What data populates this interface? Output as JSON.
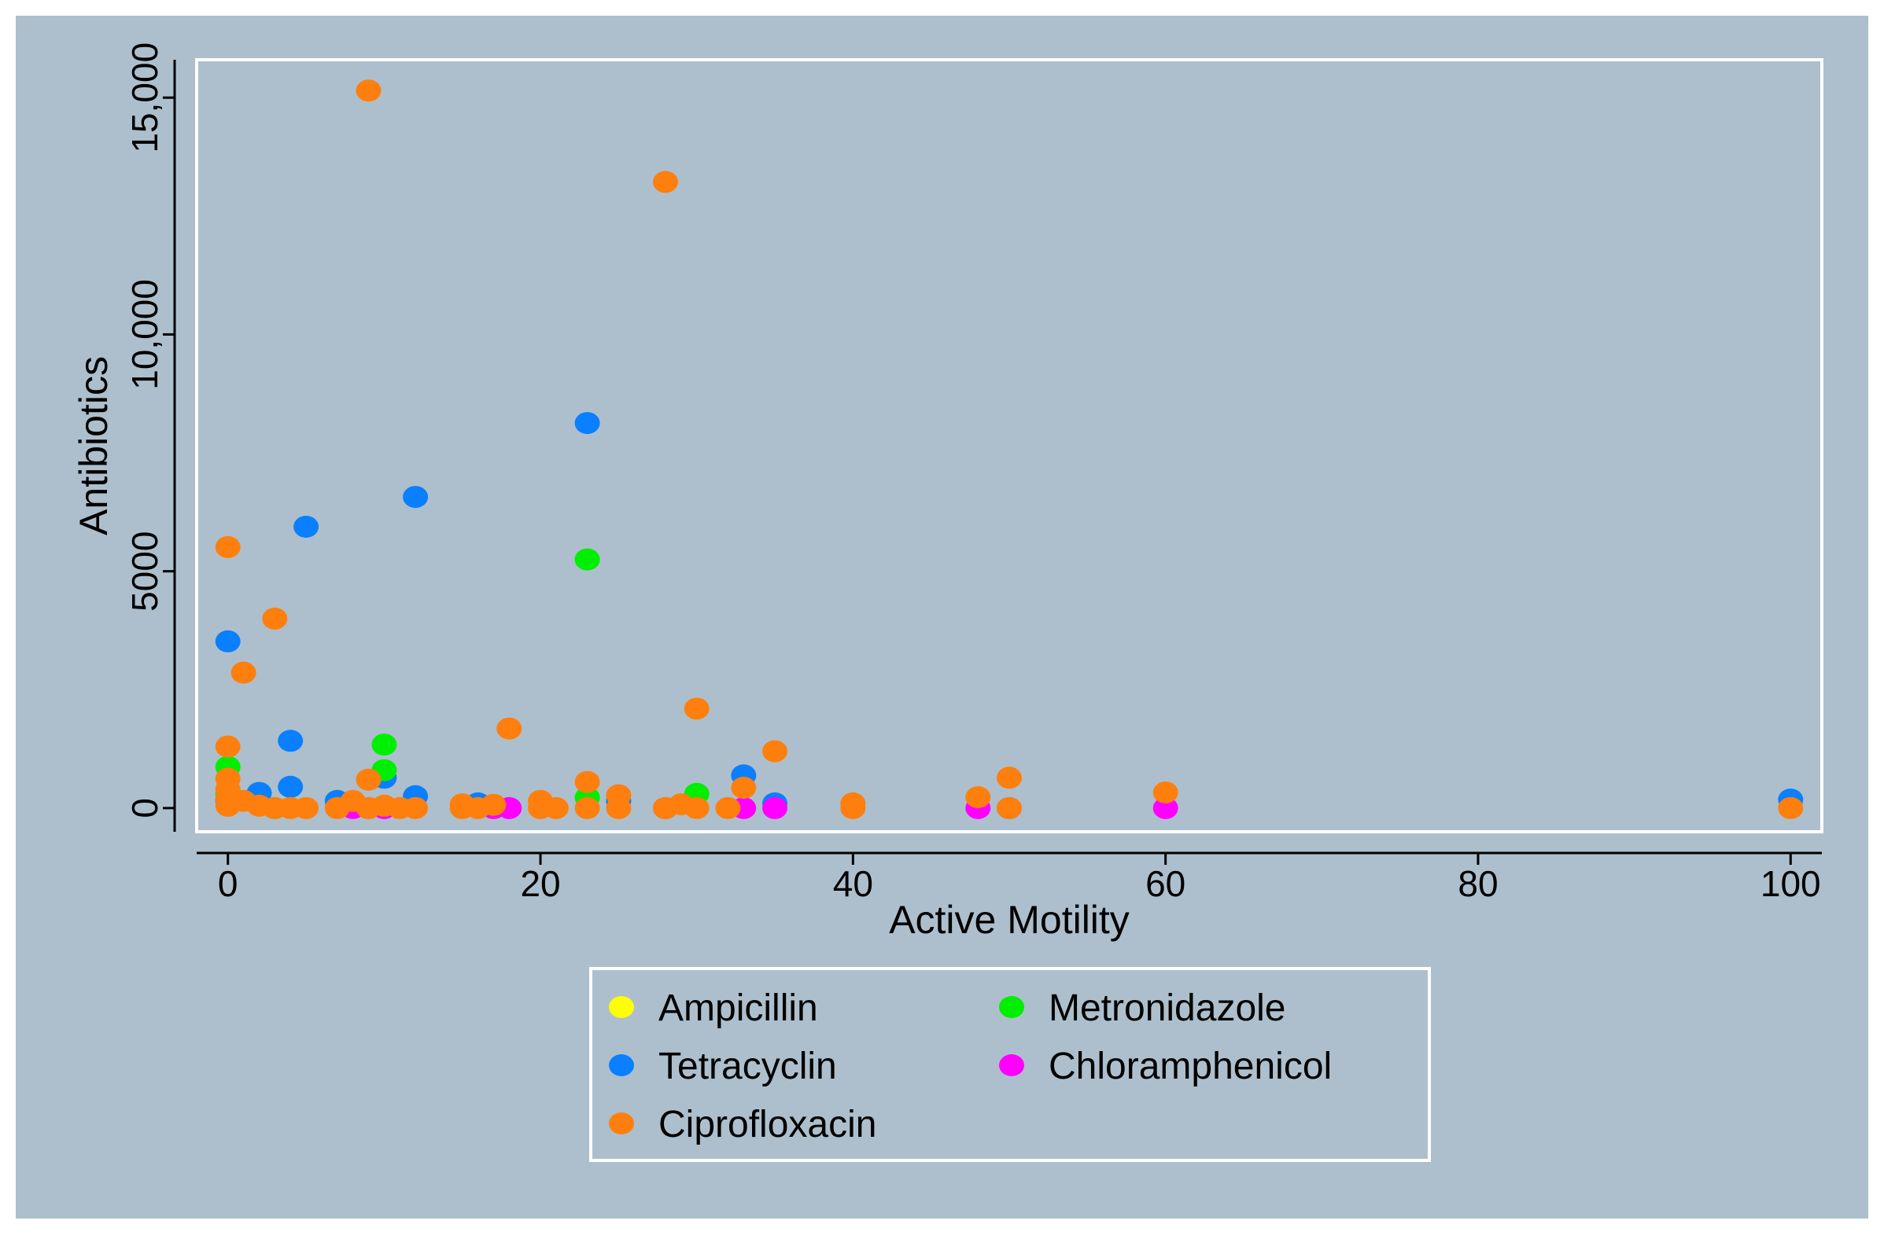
{
  "chart_data": {
    "type": "scatter",
    "title": "",
    "xlabel": "Active Motility",
    "ylabel": "Antibiotics",
    "xlim": [
      -2,
      102
    ],
    "ylim": [
      -500,
      15800
    ],
    "x_ticks": [
      0,
      20,
      40,
      60,
      80,
      100
    ],
    "x_tick_labels": [
      "0",
      "20",
      "40",
      "60",
      "80",
      "100"
    ],
    "y_ticks": [
      0,
      5000,
      10000,
      15000
    ],
    "y_tick_labels": [
      "0",
      "5000",
      "10,000",
      "15,000"
    ],
    "grid": false,
    "legend_position": "bottom-center",
    "colors": {
      "background": "#adbfcc",
      "plot_border": "#ffffff",
      "axis": "#000000"
    },
    "series": [
      {
        "name": "Ampicillin",
        "color": "#ffff00",
        "points": [
          [
            8,
            0
          ],
          [
            9,
            0
          ],
          [
            17,
            0
          ],
          [
            28,
            0
          ],
          [
            33,
            0
          ]
        ]
      },
      {
        "name": "Tetracyclin",
        "color": "#0a7fff",
        "points": [
          [
            0,
            3520
          ],
          [
            0,
            150
          ],
          [
            2,
            320
          ],
          [
            4,
            1420
          ],
          [
            4,
            450
          ],
          [
            5,
            5940
          ],
          [
            7,
            150
          ],
          [
            10,
            640
          ],
          [
            12,
            6570
          ],
          [
            12,
            250
          ],
          [
            16,
            100
          ],
          [
            23,
            8130
          ],
          [
            25,
            150
          ],
          [
            33,
            690
          ],
          [
            35,
            100
          ],
          [
            50,
            0
          ],
          [
            100,
            180
          ]
        ]
      },
      {
        "name": "Metronidazole",
        "color": "#00ee00",
        "points": [
          [
            0,
            870
          ],
          [
            0,
            300
          ],
          [
            3,
            0
          ],
          [
            10,
            1340
          ],
          [
            10,
            800
          ],
          [
            23,
            5250
          ],
          [
            23,
            220
          ],
          [
            30,
            300
          ],
          [
            17,
            0
          ]
        ]
      },
      {
        "name": "Chloramphenicol",
        "color": "#ff00ff",
        "points": [
          [
            8,
            0
          ],
          [
            9,
            0
          ],
          [
            10,
            0
          ],
          [
            17,
            0
          ],
          [
            18,
            0
          ],
          [
            28,
            0
          ],
          [
            33,
            0
          ],
          [
            35,
            0
          ],
          [
            48,
            0
          ],
          [
            60,
            0
          ]
        ]
      },
      {
        "name": "Ciprofloxacin",
        "color": "#ff7f0e",
        "points": [
          [
            0,
            5510
          ],
          [
            0,
            1300
          ],
          [
            0,
            620
          ],
          [
            0,
            400
          ],
          [
            0,
            200
          ],
          [
            0,
            50
          ],
          [
            1,
            2860
          ],
          [
            1,
            150
          ],
          [
            3,
            4000
          ],
          [
            2,
            50
          ],
          [
            3,
            0
          ],
          [
            4,
            0
          ],
          [
            5,
            0
          ],
          [
            7,
            0
          ],
          [
            8,
            150
          ],
          [
            9,
            15150
          ],
          [
            9,
            600
          ],
          [
            9,
            0
          ],
          [
            10,
            50
          ],
          [
            11,
            0
          ],
          [
            12,
            0
          ],
          [
            15,
            80
          ],
          [
            15,
            0
          ],
          [
            16,
            0
          ],
          [
            17,
            70
          ],
          [
            18,
            1680
          ],
          [
            20,
            150
          ],
          [
            20,
            0
          ],
          [
            21,
            0
          ],
          [
            23,
            550
          ],
          [
            23,
            0
          ],
          [
            25,
            270
          ],
          [
            25,
            0
          ],
          [
            28,
            13220
          ],
          [
            28,
            0
          ],
          [
            29,
            80
          ],
          [
            30,
            2100
          ],
          [
            30,
            0
          ],
          [
            32,
            0
          ],
          [
            33,
            430
          ],
          [
            35,
            1200
          ],
          [
            40,
            100
          ],
          [
            40,
            0
          ],
          [
            48,
            230
          ],
          [
            50,
            640
          ],
          [
            50,
            0
          ],
          [
            60,
            330
          ],
          [
            100,
            0
          ]
        ]
      }
    ],
    "legend": [
      {
        "name": "Ampicillin",
        "color": "#ffff00"
      },
      {
        "name": "Metronidazole",
        "color": "#00ee00"
      },
      {
        "name": "Tetracyclin",
        "color": "#0a7fff"
      },
      {
        "name": "Chloramphenicol",
        "color": "#ff00ff"
      },
      {
        "name": "Ciprofloxacin",
        "color": "#ff7f0e"
      }
    ]
  }
}
